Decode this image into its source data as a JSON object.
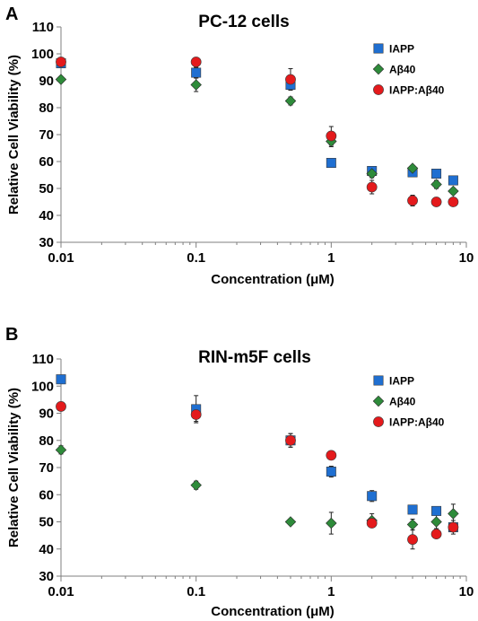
{
  "chart_data": [
    {
      "panel_label": "A",
      "type": "scatter",
      "title": "PC-12 cells",
      "xlabel": "Concentration (μM)",
      "ylabel": "Relative Cell Viability (%)",
      "xscale": "log",
      "xlim": [
        0.01,
        10
      ],
      "ylim": [
        30,
        110
      ],
      "x_ticks": [
        0.01,
        0.1,
        1,
        10
      ],
      "x_tick_labels": [
        "0.01",
        "0.1",
        "1",
        "10"
      ],
      "y_ticks": [
        30,
        40,
        50,
        60,
        70,
        80,
        90,
        100,
        110
      ],
      "y_tick_labels": [
        "30",
        "40",
        "50",
        "60",
        "70",
        "80",
        "90",
        "100",
        "110"
      ],
      "grid": false,
      "legend_position": "top-right",
      "series": [
        {
          "name": "IAPP",
          "marker": "square",
          "color": "#1f6fd1",
          "x": [
            0.01,
            0.1,
            0.5,
            1,
            2,
            4,
            6,
            8
          ],
          "y": [
            96.5,
            93,
            88.5,
            59.5,
            56.5,
            56,
            55.5,
            53
          ],
          "err": [
            1.5,
            2,
            2,
            1.5,
            1,
            1.5,
            1,
            1
          ]
        },
        {
          "name": "Aβ40",
          "marker": "diamond",
          "color": "#2e8b3a",
          "x": [
            0.01,
            0.1,
            0.5,
            1,
            2,
            4,
            6,
            8
          ],
          "y": [
            90.5,
            88.5,
            82.5,
            67.5,
            55.5,
            57.5,
            51.5,
            49
          ],
          "err": [
            1,
            2.5,
            1.5,
            2,
            1.5,
            1,
            1.5,
            0.5
          ]
        },
        {
          "name": "IAPP:Aβ40",
          "marker": "circle",
          "color": "#e41a1c",
          "x": [
            0.01,
            0.1,
            0.5,
            1,
            2,
            4,
            6,
            8
          ],
          "y": [
            97,
            97,
            90.5,
            69.5,
            50.5,
            45.5,
            45,
            45
          ],
          "err": [
            1,
            1.5,
            4,
            3.5,
            2.5,
            2,
            1.5,
            0.5
          ]
        }
      ]
    },
    {
      "panel_label": "B",
      "type": "scatter",
      "title": "RIN-m5F cells",
      "xlabel": "Concentration (μM)",
      "ylabel": "Relative Cell Viability (%)",
      "xscale": "log",
      "xlim": [
        0.01,
        10
      ],
      "ylim": [
        30,
        110
      ],
      "x_ticks": [
        0.01,
        0.1,
        1,
        10
      ],
      "x_tick_labels": [
        "0.01",
        "0.1",
        "1",
        "10"
      ],
      "y_ticks": [
        30,
        40,
        50,
        60,
        70,
        80,
        90,
        100,
        110
      ],
      "y_tick_labels": [
        "30",
        "40",
        "50",
        "60",
        "70",
        "80",
        "90",
        "100",
        "110"
      ],
      "grid": false,
      "legend_position": "top-right",
      "series": [
        {
          "name": "IAPP",
          "marker": "square",
          "color": "#1f6fd1",
          "x": [
            0.01,
            0.1,
            0.5,
            1,
            2,
            4,
            6,
            8
          ],
          "y": [
            102.5,
            91.5,
            80,
            68.5,
            59.5,
            54.5,
            54,
            48
          ],
          "err": [
            1.5,
            5,
            2.5,
            2,
            2,
            1,
            1,
            1
          ]
        },
        {
          "name": "Aβ40",
          "marker": "diamond",
          "color": "#2e8b3a",
          "x": [
            0.01,
            0.1,
            0.5,
            1,
            2,
            4,
            6,
            8
          ],
          "y": [
            76.5,
            63.5,
            50,
            49.5,
            50.5,
            49,
            50,
            53
          ],
          "err": [
            1.5,
            1.5,
            1,
            4,
            2.5,
            2,
            2.5,
            3.5
          ]
        },
        {
          "name": "IAPP:Aβ40",
          "marker": "circle",
          "color": "#e41a1c",
          "x": [
            0.01,
            0.1,
            0.5,
            1,
            2,
            4,
            6,
            8
          ],
          "y": [
            92.5,
            89.5,
            80,
            74.5,
            49.5,
            43.5,
            45.5,
            48
          ],
          "err": [
            1,
            2.5,
            2.5,
            1,
            1.5,
            3.5,
            1.5,
            2.5
          ]
        }
      ]
    }
  ]
}
